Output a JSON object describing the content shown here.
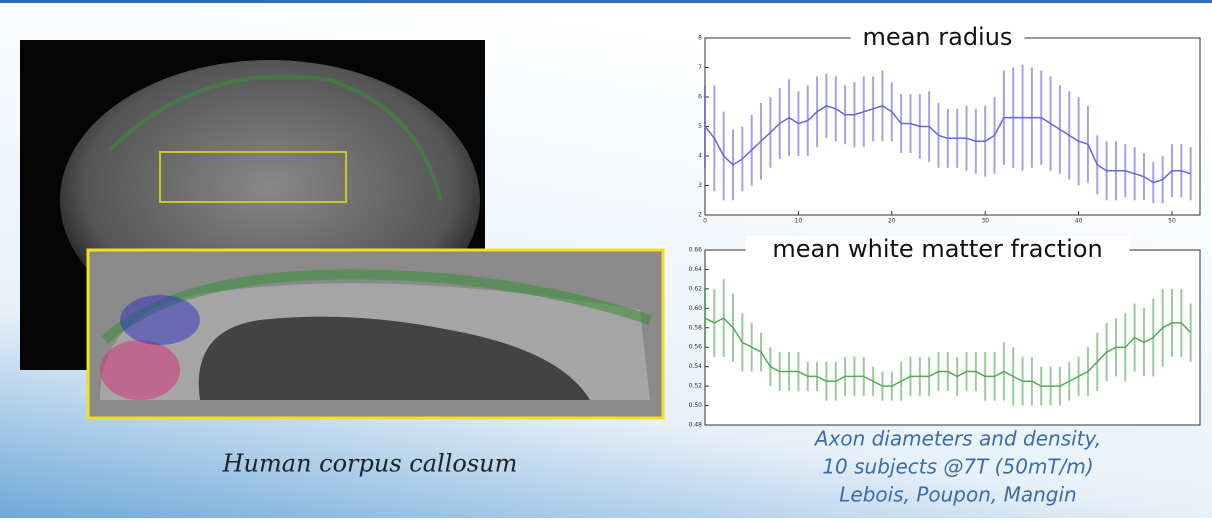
{
  "chart_data": [
    {
      "type": "errorbar",
      "title": "mean radius",
      "color": "#6666dd",
      "x": [
        0,
        1,
        2,
        3,
        4,
        5,
        6,
        7,
        8,
        9,
        10,
        11,
        12,
        13,
        14,
        15,
        16,
        17,
        18,
        19,
        20,
        21,
        22,
        23,
        24,
        25,
        26,
        27,
        28,
        29,
        30,
        31,
        32,
        33,
        34,
        35,
        36,
        37,
        38,
        39,
        40,
        41,
        42,
        43,
        44,
        45,
        46,
        47,
        48,
        49,
        50,
        51,
        52
      ],
      "values": [
        5.0,
        4.6,
        4.0,
        3.7,
        3.9,
        4.2,
        4.5,
        4.8,
        5.1,
        5.3,
        5.1,
        5.2,
        5.5,
        5.7,
        5.6,
        5.4,
        5.4,
        5.5,
        5.6,
        5.7,
        5.5,
        5.1,
        5.1,
        5.0,
        5.0,
        4.7,
        4.6,
        4.6,
        4.6,
        4.5,
        4.5,
        4.7,
        5.3,
        5.3,
        5.3,
        5.3,
        5.3,
        5.1,
        4.9,
        4.7,
        4.5,
        4.4,
        3.7,
        3.5,
        3.5,
        3.5,
        3.4,
        3.3,
        3.1,
        3.2,
        3.5,
        3.5,
        3.4
      ],
      "errors": [
        1.4,
        1.8,
        1.5,
        1.2,
        1.1,
        1.2,
        1.3,
        1.2,
        1.2,
        1.3,
        1.1,
        1.2,
        1.2,
        1.1,
        1.1,
        1.0,
        1.1,
        1.2,
        1.1,
        1.2,
        1.0,
        1.0,
        1.0,
        1.1,
        1.2,
        1.1,
        1.0,
        1.0,
        1.1,
        1.1,
        1.2,
        1.3,
        1.6,
        1.7,
        1.8,
        1.7,
        1.6,
        1.6,
        1.5,
        1.5,
        1.5,
        1.3,
        1.0,
        1.0,
        1.0,
        0.9,
        0.9,
        0.8,
        0.7,
        0.8,
        0.9,
        0.9,
        0.9
      ],
      "xlim": [
        0,
        53
      ],
      "ylim": [
        2,
        8
      ],
      "xticks": [
        0,
        10,
        20,
        30,
        40,
        50
      ],
      "yticks": [
        2,
        3,
        4,
        5,
        6,
        7,
        8
      ]
    },
    {
      "type": "errorbar",
      "title": "mean white matter fraction",
      "color": "#55aa55",
      "x": [
        0,
        1,
        2,
        3,
        4,
        5,
        6,
        7,
        8,
        9,
        10,
        11,
        12,
        13,
        14,
        15,
        16,
        17,
        18,
        19,
        20,
        21,
        22,
        23,
        24,
        25,
        26,
        27,
        28,
        29,
        30,
        31,
        32,
        33,
        34,
        35,
        36,
        37,
        38,
        39,
        40,
        41,
        42,
        43,
        44,
        45,
        46,
        47,
        48,
        49,
        50,
        51,
        52
      ],
      "values": [
        0.59,
        0.585,
        0.59,
        0.58,
        0.565,
        0.56,
        0.555,
        0.54,
        0.535,
        0.535,
        0.535,
        0.53,
        0.53,
        0.525,
        0.525,
        0.53,
        0.53,
        0.53,
        0.525,
        0.52,
        0.52,
        0.525,
        0.53,
        0.53,
        0.53,
        0.535,
        0.535,
        0.53,
        0.535,
        0.535,
        0.53,
        0.53,
        0.535,
        0.53,
        0.525,
        0.525,
        0.52,
        0.52,
        0.52,
        0.525,
        0.53,
        0.535,
        0.545,
        0.555,
        0.56,
        0.56,
        0.57,
        0.565,
        0.57,
        0.58,
        0.585,
        0.585,
        0.575
      ],
      "errors": [
        0.03,
        0.035,
        0.04,
        0.035,
        0.03,
        0.025,
        0.02,
        0.02,
        0.02,
        0.02,
        0.02,
        0.015,
        0.015,
        0.02,
        0.02,
        0.02,
        0.02,
        0.02,
        0.015,
        0.015,
        0.015,
        0.02,
        0.02,
        0.02,
        0.02,
        0.02,
        0.02,
        0.02,
        0.02,
        0.02,
        0.025,
        0.025,
        0.03,
        0.03,
        0.025,
        0.025,
        0.02,
        0.02,
        0.02,
        0.02,
        0.02,
        0.025,
        0.03,
        0.03,
        0.03,
        0.035,
        0.035,
        0.035,
        0.04,
        0.04,
        0.035,
        0.035,
        0.03
      ],
      "xlim": [
        0,
        53
      ],
      "ylim": [
        0.48,
        0.66
      ],
      "yticks": [
        {
          "value": 0.48,
          "label": "0.48"
        },
        {
          "value": 0.5,
          "label": "0.50"
        },
        {
          "value": 0.52,
          "label": "0.52"
        },
        {
          "value": 0.54,
          "label": "0.54"
        },
        {
          "value": 0.56,
          "label": "0.56"
        },
        {
          "value": 0.58,
          "label": "0.58"
        },
        {
          "value": 0.6,
          "label": "0.60"
        },
        {
          "value": 0.62,
          "label": "0.62"
        },
        {
          "value": 0.64,
          "label": "0.64"
        },
        {
          "value": 0.66,
          "label": "0.66"
        }
      ]
    }
  ],
  "image_caption": "Human corpus callosum",
  "credit": [
    "Axon diameters and density,",
    "10 subjects @7T (50mT/m)",
    "Lebois, Poupon, Mangin"
  ]
}
